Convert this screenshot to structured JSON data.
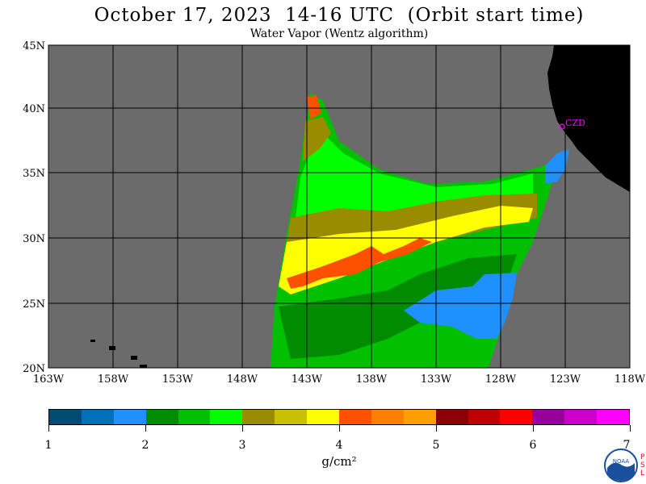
{
  "title": "October 17, 2023  14-16 UTC  (Orbit start time)",
  "subtitle": "Water Vapor (Wentz algorithm)",
  "units": "g/cm²",
  "station_label": "CZD",
  "logo_text": "NOAA",
  "lab_text": "PSL",
  "map": {
    "lon_ticks": [
      "163W",
      "158W",
      "153W",
      "148W",
      "143W",
      "138W",
      "133W",
      "128W",
      "123W",
      "118W"
    ],
    "lat_ticks": [
      "45N",
      "40N",
      "35N",
      "30N",
      "25N",
      "20N"
    ],
    "land_color": "#000000",
    "ocean_color": "#6b6b6b",
    "grid_color": "#000000"
  },
  "colorbar": {
    "colors": [
      "#004a73",
      "#0070b8",
      "#1e90ff",
      "#008b00",
      "#00c000",
      "#00ff00",
      "#9a8c00",
      "#c8c000",
      "#ffff00",
      "#ff5000",
      "#ff8000",
      "#ffa000",
      "#8b0000",
      "#c00000",
      "#ff0000",
      "#990099",
      "#cc00cc",
      "#ff00ff"
    ],
    "ticks": [
      "1",
      "2",
      "3",
      "4",
      "5",
      "6",
      "7"
    ]
  }
}
